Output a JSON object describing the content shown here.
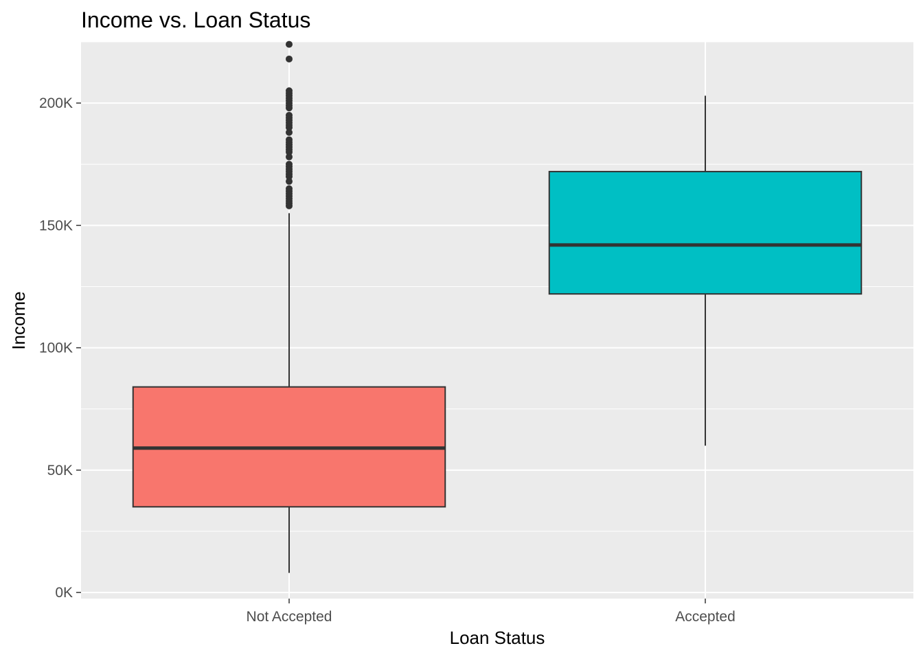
{
  "chart_data": {
    "type": "boxplot",
    "title": "Income vs. Loan Status",
    "xlabel": "Loan Status",
    "ylabel": "Income",
    "ylim": [
      -2500,
      225000
    ],
    "y_ticks": [
      0,
      50000,
      100000,
      150000,
      200000
    ],
    "y_tick_labels": [
      "0K",
      "50K",
      "100K",
      "150K",
      "200K"
    ],
    "y_minor_ticks": [
      25000,
      75000,
      125000,
      175000,
      225000
    ],
    "grid": true,
    "legend": "none",
    "categories": [
      "Not Accepted",
      "Accepted"
    ],
    "boxes": [
      {
        "category": "Not Accepted",
        "color": "#F8766D",
        "whisker_low": 8000,
        "q1": 35000,
        "median": 59000,
        "q3": 84000,
        "whisker_high": 155000,
        "outliers": [
          158000,
          159000,
          160000,
          161000,
          162000,
          163000,
          164000,
          165000,
          168000,
          170000,
          171000,
          172000,
          173000,
          174000,
          175000,
          178000,
          180000,
          181000,
          182000,
          183000,
          184000,
          185000,
          188000,
          190000,
          191000,
          192000,
          193000,
          194000,
          195000,
          198000,
          199000,
          200000,
          201000,
          202000,
          203000,
          204000,
          205000,
          218000,
          224000
        ]
      },
      {
        "category": "Accepted",
        "color": "#00BFC4",
        "whisker_low": 60000,
        "q1": 122000,
        "median": 142000,
        "q3": 172000,
        "whisker_high": 203000,
        "outliers": []
      }
    ]
  }
}
